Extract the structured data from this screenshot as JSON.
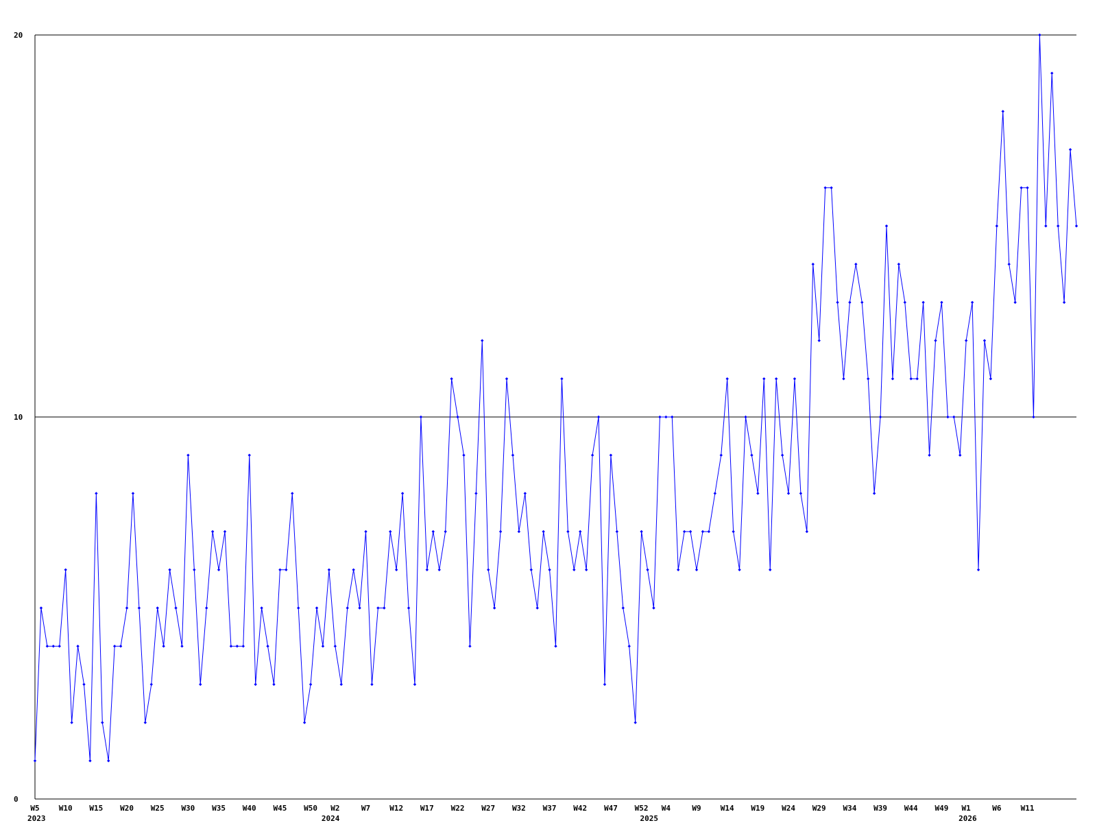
{
  "chart_data": {
    "type": "line",
    "categories": [
      "W5",
      null,
      null,
      null,
      null,
      "W10",
      null,
      null,
      null,
      null,
      "W15",
      null,
      null,
      null,
      null,
      "W20",
      null,
      null,
      null,
      null,
      "W25",
      null,
      null,
      null,
      null,
      "W30",
      null,
      null,
      null,
      null,
      "W35",
      null,
      null,
      null,
      null,
      "W40",
      null,
      null,
      null,
      null,
      "W45",
      null,
      null,
      null,
      null,
      "W50",
      null,
      null,
      null,
      "W2",
      null,
      null,
      null,
      null,
      "W7",
      null,
      null,
      null,
      null,
      "W12",
      null,
      null,
      null,
      null,
      "W17",
      null,
      null,
      null,
      null,
      "W22",
      null,
      null,
      null,
      null,
      "W27",
      null,
      null,
      null,
      null,
      "W32",
      null,
      null,
      null,
      null,
      "W37",
      null,
      null,
      null,
      null,
      "W42",
      null,
      null,
      null,
      null,
      "W47",
      null,
      null,
      null,
      null,
      "W52",
      null,
      null,
      null,
      "W4",
      null,
      null,
      null,
      null,
      "W9",
      null,
      null,
      null,
      null,
      "W14",
      null,
      null,
      null,
      null,
      "W19",
      null,
      null,
      null,
      null,
      "W24",
      null,
      null,
      null,
      null,
      "W29",
      null,
      null,
      null,
      null,
      "W34",
      null,
      null,
      null,
      null,
      "W39",
      null,
      null,
      null,
      null,
      "W44",
      null,
      null,
      null,
      null,
      "W49",
      null,
      null,
      null,
      "W1",
      null,
      null,
      null,
      null,
      "W6",
      null,
      null,
      null,
      null,
      "W11",
      null,
      null,
      null,
      null,
      null,
      null,
      null,
      null
    ],
    "year_labels": [
      "2023",
      null,
      null,
      null,
      null,
      null,
      null,
      null,
      null,
      null,
      null,
      null,
      null,
      null,
      null,
      null,
      null,
      null,
      null,
      null,
      null,
      null,
      null,
      null,
      null,
      null,
      null,
      null,
      null,
      null,
      null,
      null,
      null,
      null,
      null,
      null,
      null,
      null,
      null,
      null,
      null,
      null,
      null,
      null,
      null,
      null,
      null,
      null,
      "2024",
      null,
      null,
      null,
      null,
      null,
      null,
      null,
      null,
      null,
      null,
      null,
      null,
      null,
      null,
      null,
      null,
      null,
      null,
      null,
      null,
      null,
      null,
      null,
      null,
      null,
      null,
      null,
      null,
      null,
      null,
      null,
      null,
      null,
      null,
      null,
      null,
      null,
      null,
      null,
      null,
      null,
      null,
      null,
      null,
      null,
      null,
      null,
      null,
      null,
      null,
      null,
      "2025",
      null,
      null,
      null,
      null,
      null,
      null,
      null,
      null,
      null,
      null,
      null,
      null,
      null,
      null,
      null,
      null,
      null,
      null,
      null,
      null,
      null,
      null,
      null,
      null,
      null,
      null,
      null,
      null,
      null,
      null,
      null,
      null,
      null,
      null,
      null,
      null,
      null,
      null,
      null,
      null,
      null,
      null,
      null,
      null,
      null,
      null,
      null,
      null,
      null,
      null,
      null,
      "2026",
      null,
      null,
      null,
      null,
      null,
      null,
      null,
      null,
      null,
      null,
      null,
      null,
      null,
      null,
      null,
      null,
      null,
      null
    ],
    "series": [
      {
        "color": "#0000ff",
        "values": [
          1,
          5,
          4,
          4,
          4,
          6,
          2,
          4,
          3,
          1,
          8,
          2,
          1,
          4,
          4,
          5,
          8,
          5,
          2,
          3,
          5,
          4,
          6,
          5,
          4,
          9,
          6,
          3,
          5,
          7,
          6,
          7,
          4,
          4,
          4,
          9,
          3,
          5,
          4,
          3,
          6,
          6,
          8,
          5,
          2,
          3,
          5,
          4,
          6,
          4,
          3,
          5,
          6,
          5,
          7,
          3,
          5,
          5,
          7,
          6,
          8,
          5,
          3,
          10,
          6,
          7,
          6,
          7,
          11,
          10,
          9,
          4,
          8,
          12,
          6,
          5,
          7,
          11,
          9,
          7,
          8,
          6,
          5,
          7,
          6,
          4,
          11,
          7,
          6,
          7,
          6,
          9,
          10,
          3,
          9,
          7,
          5,
          4,
          2,
          7,
          6,
          5,
          10,
          10,
          10,
          6,
          7,
          7,
          6,
          7,
          7,
          8,
          9,
          11,
          7,
          6,
          10,
          9,
          8,
          11,
          6,
          11,
          9,
          8,
          11,
          8,
          7,
          14,
          12,
          16,
          16,
          13,
          11,
          13,
          14,
          13,
          11,
          8,
          10,
          15,
          11,
          14,
          13,
          11,
          11,
          13,
          9,
          12,
          13,
          10,
          10,
          9,
          12,
          13,
          6,
          12,
          11,
          15,
          18,
          14,
          13,
          16,
          16,
          10,
          20,
          15,
          19,
          15,
          13,
          17,
          15
        ]
      }
    ],
    "ylim": [
      0,
      20
    ],
    "yticks": [
      0,
      10,
      20
    ],
    "grid": true
  }
}
